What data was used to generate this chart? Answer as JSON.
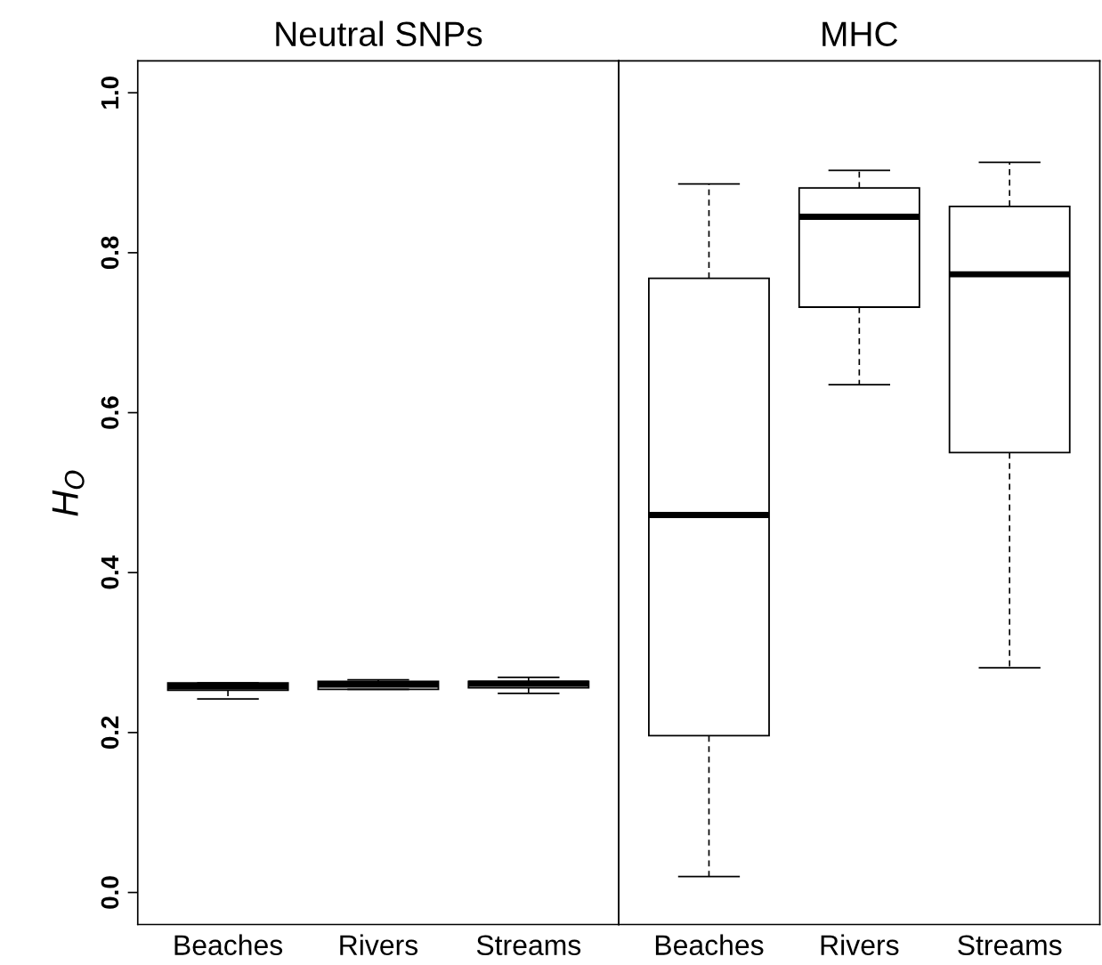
{
  "chart_data": [
    {
      "type": "box",
      "title": "Neutral SNPs",
      "ylabel": "H$_{O}$",
      "categories": [
        "Beaches",
        "Rivers",
        "Streams"
      ],
      "ylim": [
        -0.04,
        1.04
      ],
      "yticks": [
        {
          "value": 0,
          "label": "0.0"
        },
        0.2,
        0.4,
        0.6,
        0.8,
        {
          "value": 1,
          "label": "1.0"
        }
      ],
      "grid": false,
      "boxes": [
        {
          "low": 0.242,
          "q1": 0.253,
          "median": 0.258,
          "q3": 0.262,
          "high": 0.262
        },
        {
          "low": 0.254,
          "q1": 0.254,
          "median": 0.26,
          "q3": 0.264,
          "high": 0.266
        },
        {
          "low": 0.249,
          "q1": 0.256,
          "median": 0.261,
          "q3": 0.264,
          "high": 0.269
        }
      ]
    },
    {
      "type": "box",
      "title": "MHC",
      "categories": [
        "Beaches",
        "Rivers",
        "Streams"
      ],
      "ylim": [
        -0.04,
        1.04
      ],
      "tick_labels": "x",
      "grid": false,
      "boxes": [
        {
          "low": 0.02,
          "q1": 0.196,
          "median": 0.472,
          "q3": 0.768,
          "high": 0.886
        },
        {
          "low": 0.635,
          "q1": 0.732,
          "median": 0.845,
          "q3": 0.881,
          "high": 0.903
        },
        {
          "low": 0.281,
          "q1": 0.55,
          "median": 0.773,
          "q3": 0.858,
          "high": 0.913
        }
      ]
    }
  ]
}
